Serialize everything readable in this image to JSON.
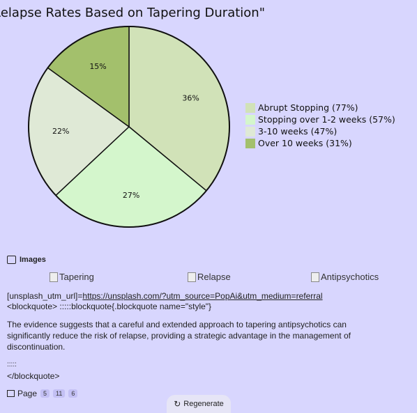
{
  "chart_data": {
    "type": "pie",
    "title": "Relapse Rates Based on Tapering Duration\"",
    "labels": [
      "Abrupt Stopping (77%)",
      "Stopping over 1-2 weeks (57%)",
      "3-10 weeks (47%)",
      "Over 10 weeks (31%)"
    ],
    "values": [
      36,
      27,
      22,
      15
    ],
    "value_labels": [
      "36%",
      "27%",
      "22%",
      "15%"
    ],
    "colors": [
      "#d1e2b8",
      "#d4f6cc",
      "#dfe9d6",
      "#a3c06c"
    ],
    "legend_position": "right"
  },
  "images_section": {
    "heading": "Images",
    "items": [
      {
        "alt": "Tapering"
      },
      {
        "alt": "Relapse"
      },
      {
        "alt": "Antipsychotics"
      }
    ]
  },
  "text": {
    "unsplash_prefix": "[unsplash_utm_url]=",
    "unsplash_link": "https://unsplash.com/?utm_source=PopAi&utm_medium=referral",
    "blockquote_open": "<blockquote> :::::blockquote{.blockquote name=\"style\"}",
    "paragraph": "The evidence suggests that a careful and extended approach to tapering antipsychotics can significantly reduce the risk of relapse, providing a strategic advantage in the management of discontinuation.",
    "colons": ":::::",
    "blockquote_close": "</blockquote>"
  },
  "pager": {
    "label": "Page",
    "pages": [
      "5",
      "11",
      "6"
    ]
  },
  "regenerate": {
    "label": "Regenerate"
  }
}
